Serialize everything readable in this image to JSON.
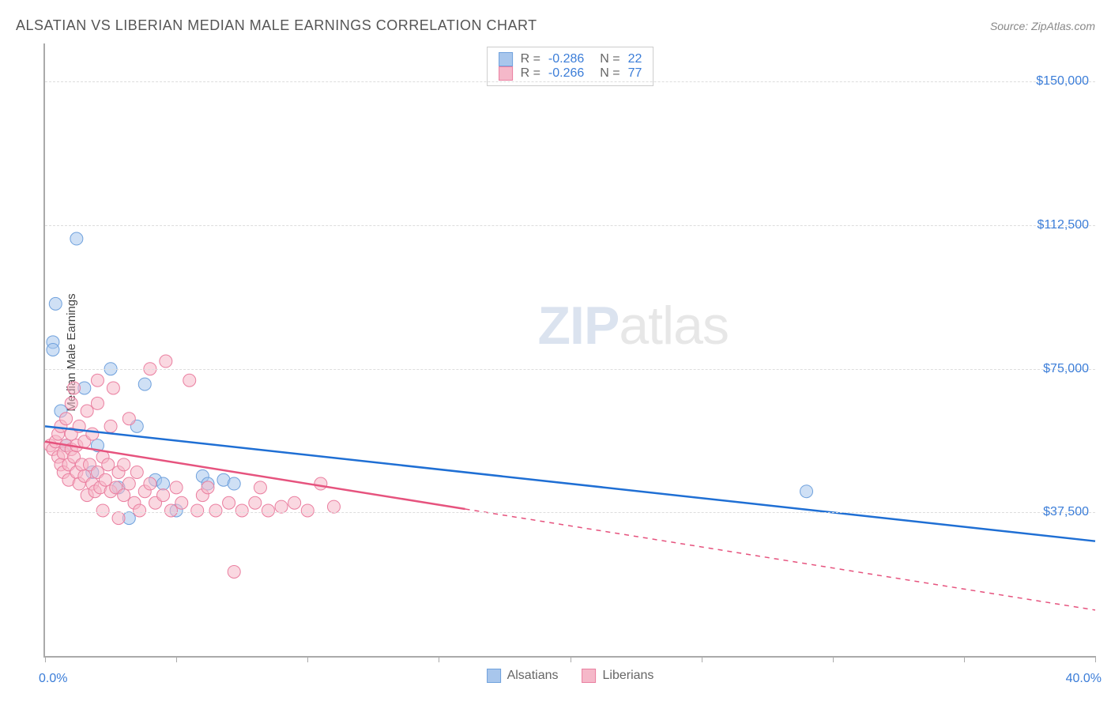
{
  "title": "ALSATIAN VS LIBERIAN MEDIAN MALE EARNINGS CORRELATION CHART",
  "source_label": "Source: ZipAtlas.com",
  "y_axis_label": "Median Male Earnings",
  "watermark": {
    "bold": "ZIP",
    "rest": "atlas"
  },
  "chart": {
    "type": "scatter",
    "xlim": [
      0,
      40
    ],
    "ylim": [
      0,
      160000
    ],
    "x_tick_positions_pct": [
      0,
      12.5,
      25,
      37.5,
      50,
      62.5,
      75,
      87.5,
      100
    ],
    "x_range_labels": {
      "min": "0.0%",
      "max": "40.0%"
    },
    "y_gridlines": [
      {
        "value": 37500,
        "label": "$37,500"
      },
      {
        "value": 75000,
        "label": "$75,000"
      },
      {
        "value": 112500,
        "label": "$112,500"
      },
      {
        "value": 150000,
        "label": "$150,000"
      }
    ],
    "background_color": "#ffffff",
    "grid_color": "#dddddd",
    "axis_color": "#aaaaaa",
    "marker_radius": 8,
    "marker_opacity": 0.55,
    "line_width": 2.5,
    "series": [
      {
        "name": "Alsatians",
        "color_fill": "#a8c6ec",
        "color_stroke": "#6fa1dd",
        "line_color": "#1f6fd4",
        "stats": {
          "R": "-0.286",
          "N": "22"
        },
        "trend": {
          "x1": 0,
          "y1": 60000,
          "x2": 40,
          "y2": 30000,
          "solid_until_x": 40
        },
        "points": [
          [
            0.3,
            82000
          ],
          [
            0.3,
            80000
          ],
          [
            0.4,
            92000
          ],
          [
            0.6,
            64000
          ],
          [
            1.2,
            109000
          ],
          [
            1.5,
            70000
          ],
          [
            1.8,
            48000
          ],
          [
            2.5,
            75000
          ],
          [
            2.8,
            44000
          ],
          [
            3.2,
            36000
          ],
          [
            3.5,
            60000
          ],
          [
            3.8,
            71000
          ],
          [
            4.2,
            46000
          ],
          [
            4.5,
            45000
          ],
          [
            5.0,
            38000
          ],
          [
            6.0,
            47000
          ],
          [
            6.2,
            45000
          ],
          [
            6.8,
            46000
          ],
          [
            7.2,
            45000
          ],
          [
            29.0,
            43000
          ],
          [
            0.8,
            55000
          ],
          [
            2.0,
            55000
          ]
        ]
      },
      {
        "name": "Liberians",
        "color_fill": "#f5b8c9",
        "color_stroke": "#ea7fa0",
        "line_color": "#e6537e",
        "stats": {
          "R": "-0.266",
          "N": "77"
        },
        "trend": {
          "x1": 0,
          "y1": 56000,
          "x2": 40,
          "y2": 12000,
          "solid_until_x": 16
        },
        "points": [
          [
            0.2,
            55000
          ],
          [
            0.3,
            54000
          ],
          [
            0.4,
            56000
          ],
          [
            0.5,
            52000
          ],
          [
            0.5,
            58000
          ],
          [
            0.6,
            50000
          ],
          [
            0.6,
            60000
          ],
          [
            0.7,
            53000
          ],
          [
            0.7,
            48000
          ],
          [
            0.8,
            55000
          ],
          [
            0.8,
            62000
          ],
          [
            0.9,
            50000
          ],
          [
            0.9,
            46000
          ],
          [
            1.0,
            54000
          ],
          [
            1.0,
            58000
          ],
          [
            1.1,
            70000
          ],
          [
            1.1,
            52000
          ],
          [
            1.2,
            48000
          ],
          [
            1.2,
            55000
          ],
          [
            1.3,
            45000
          ],
          [
            1.3,
            60000
          ],
          [
            1.4,
            50000
          ],
          [
            1.5,
            47000
          ],
          [
            1.5,
            56000
          ],
          [
            1.6,
            42000
          ],
          [
            1.6,
            64000
          ],
          [
            1.7,
            50000
          ],
          [
            1.8,
            45000
          ],
          [
            1.8,
            58000
          ],
          [
            1.9,
            43000
          ],
          [
            2.0,
            48000
          ],
          [
            2.0,
            72000
          ],
          [
            2.1,
            44000
          ],
          [
            2.2,
            52000
          ],
          [
            2.2,
            38000
          ],
          [
            2.3,
            46000
          ],
          [
            2.4,
            50000
          ],
          [
            2.5,
            43000
          ],
          [
            2.6,
            70000
          ],
          [
            2.7,
            44000
          ],
          [
            2.8,
            48000
          ],
          [
            2.8,
            36000
          ],
          [
            3.0,
            42000
          ],
          [
            3.0,
            50000
          ],
          [
            3.2,
            45000
          ],
          [
            3.4,
            40000
          ],
          [
            3.5,
            48000
          ],
          [
            3.6,
            38000
          ],
          [
            3.8,
            43000
          ],
          [
            4.0,
            75000
          ],
          [
            4.0,
            45000
          ],
          [
            4.2,
            40000
          ],
          [
            4.5,
            42000
          ],
          [
            4.6,
            77000
          ],
          [
            4.8,
            38000
          ],
          [
            5.0,
            44000
          ],
          [
            5.2,
            40000
          ],
          [
            5.5,
            72000
          ],
          [
            5.8,
            38000
          ],
          [
            6.0,
            42000
          ],
          [
            6.2,
            44000
          ],
          [
            6.5,
            38000
          ],
          [
            7.0,
            40000
          ],
          [
            7.2,
            22000
          ],
          [
            7.5,
            38000
          ],
          [
            8.0,
            40000
          ],
          [
            8.2,
            44000
          ],
          [
            8.5,
            38000
          ],
          [
            9.0,
            39000
          ],
          [
            9.5,
            40000
          ],
          [
            10.0,
            38000
          ],
          [
            10.5,
            45000
          ],
          [
            11.0,
            39000
          ],
          [
            2.0,
            66000
          ],
          [
            2.5,
            60000
          ],
          [
            3.2,
            62000
          ],
          [
            1.0,
            66000
          ]
        ]
      }
    ]
  },
  "legend_bottom": [
    {
      "label": "Alsatians",
      "fill": "#a8c6ec",
      "stroke": "#6fa1dd"
    },
    {
      "label": "Liberians",
      "fill": "#f5b8c9",
      "stroke": "#ea7fa0"
    }
  ],
  "colors": {
    "value_text": "#3b7dd8",
    "title_text": "#555555",
    "source_text": "#888888"
  }
}
